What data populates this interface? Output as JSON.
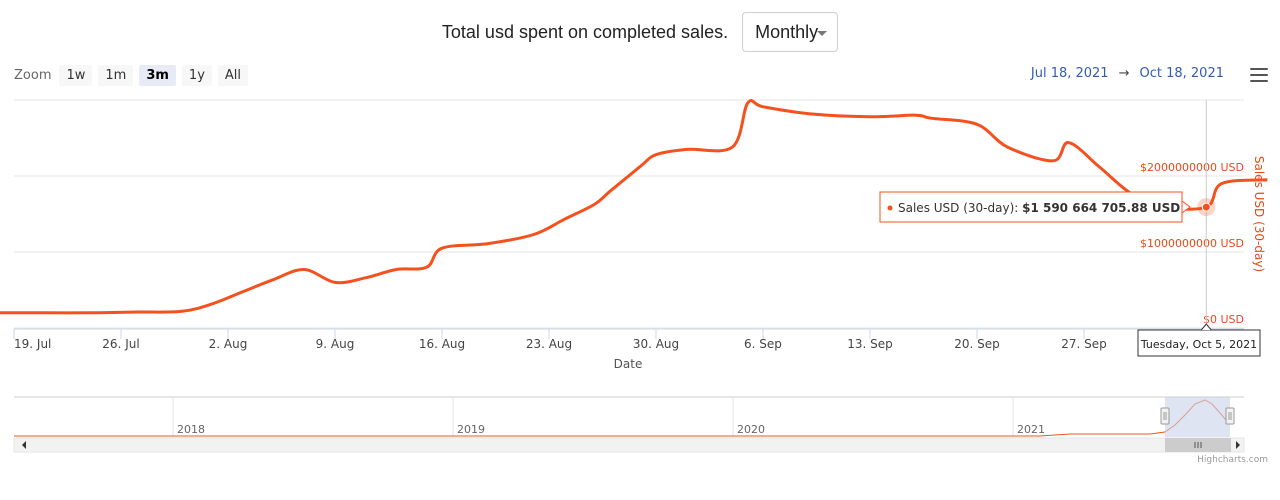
{
  "header": {
    "title": "Total usd spent on completed sales.",
    "period_select": "Monthly"
  },
  "toolbar": {
    "zoom_label": "Zoom",
    "zoom_buttons": [
      "1w",
      "1m",
      "3m",
      "1y",
      "All"
    ],
    "active_zoom": "3m",
    "range_from": "Jul 18, 2021",
    "range_arrow": "→",
    "range_to": "Oct 18, 2021"
  },
  "tooltip": {
    "series": "Sales USD (30-day): ",
    "value": "$1 590 664 705.88 USD",
    "date": "Tuesday, Oct 5, 2021"
  },
  "navigator": {
    "years": [
      "2018",
      "2019",
      "2020",
      "2021"
    ]
  },
  "credits": "Highcharts.com",
  "colors": {
    "series": "#f4511e",
    "axis_label": "#e64a19",
    "link": "#335cad",
    "navigator_mask": "#c8d2ea"
  },
  "chart_data": {
    "type": "line",
    "title": "",
    "xlabel": "Date",
    "ylabel": "Sales USD (30-day)",
    "x_ticks": [
      "19. Jul",
      "26. Jul",
      "2. Aug",
      "9. Aug",
      "16. Aug",
      "23. Aug",
      "30. Aug",
      "6. Sep",
      "13. Sep",
      "20. Sep",
      "27. Sep"
    ],
    "y_ticks": [
      "$0 USD",
      "$1000000000 USD",
      "$2000000000 USD"
    ],
    "ylim": [
      0,
      3000000000
    ],
    "grid": true,
    "series": [
      {
        "name": "Sales USD (30-day)",
        "x": [
          "2021-07-18",
          "2021-07-21",
          "2021-07-24",
          "2021-07-27",
          "2021-07-30",
          "2021-08-01",
          "2021-08-03",
          "2021-08-05",
          "2021-08-07",
          "2021-08-09",
          "2021-08-11",
          "2021-08-13",
          "2021-08-15",
          "2021-08-16",
          "2021-08-19",
          "2021-08-22",
          "2021-08-24",
          "2021-08-26",
          "2021-08-27",
          "2021-08-29",
          "2021-08-30",
          "2021-09-01",
          "2021-09-04",
          "2021-09-05",
          "2021-09-06",
          "2021-09-09",
          "2021-09-13",
          "2021-09-16",
          "2021-09-17",
          "2021-09-20",
          "2021-09-22",
          "2021-09-25",
          "2021-09-26",
          "2021-09-28",
          "2021-09-30",
          "2021-10-02",
          "2021-10-05",
          "2021-10-06",
          "2021-10-09"
        ],
        "y": [
          200000000,
          200000000,
          200000000,
          210000000,
          220000000,
          320000000,
          480000000,
          640000000,
          770000000,
          600000000,
          660000000,
          770000000,
          800000000,
          1050000000,
          1110000000,
          1230000000,
          1430000000,
          1630000000,
          1800000000,
          2130000000,
          2280000000,
          2350000000,
          2380000000,
          2960000000,
          2910000000,
          2820000000,
          2780000000,
          2800000000,
          2760000000,
          2680000000,
          2380000000,
          2200000000,
          2440000000,
          2120000000,
          1780000000,
          1600000000,
          1590664705,
          1900000000,
          1950000000
        ]
      }
    ]
  }
}
